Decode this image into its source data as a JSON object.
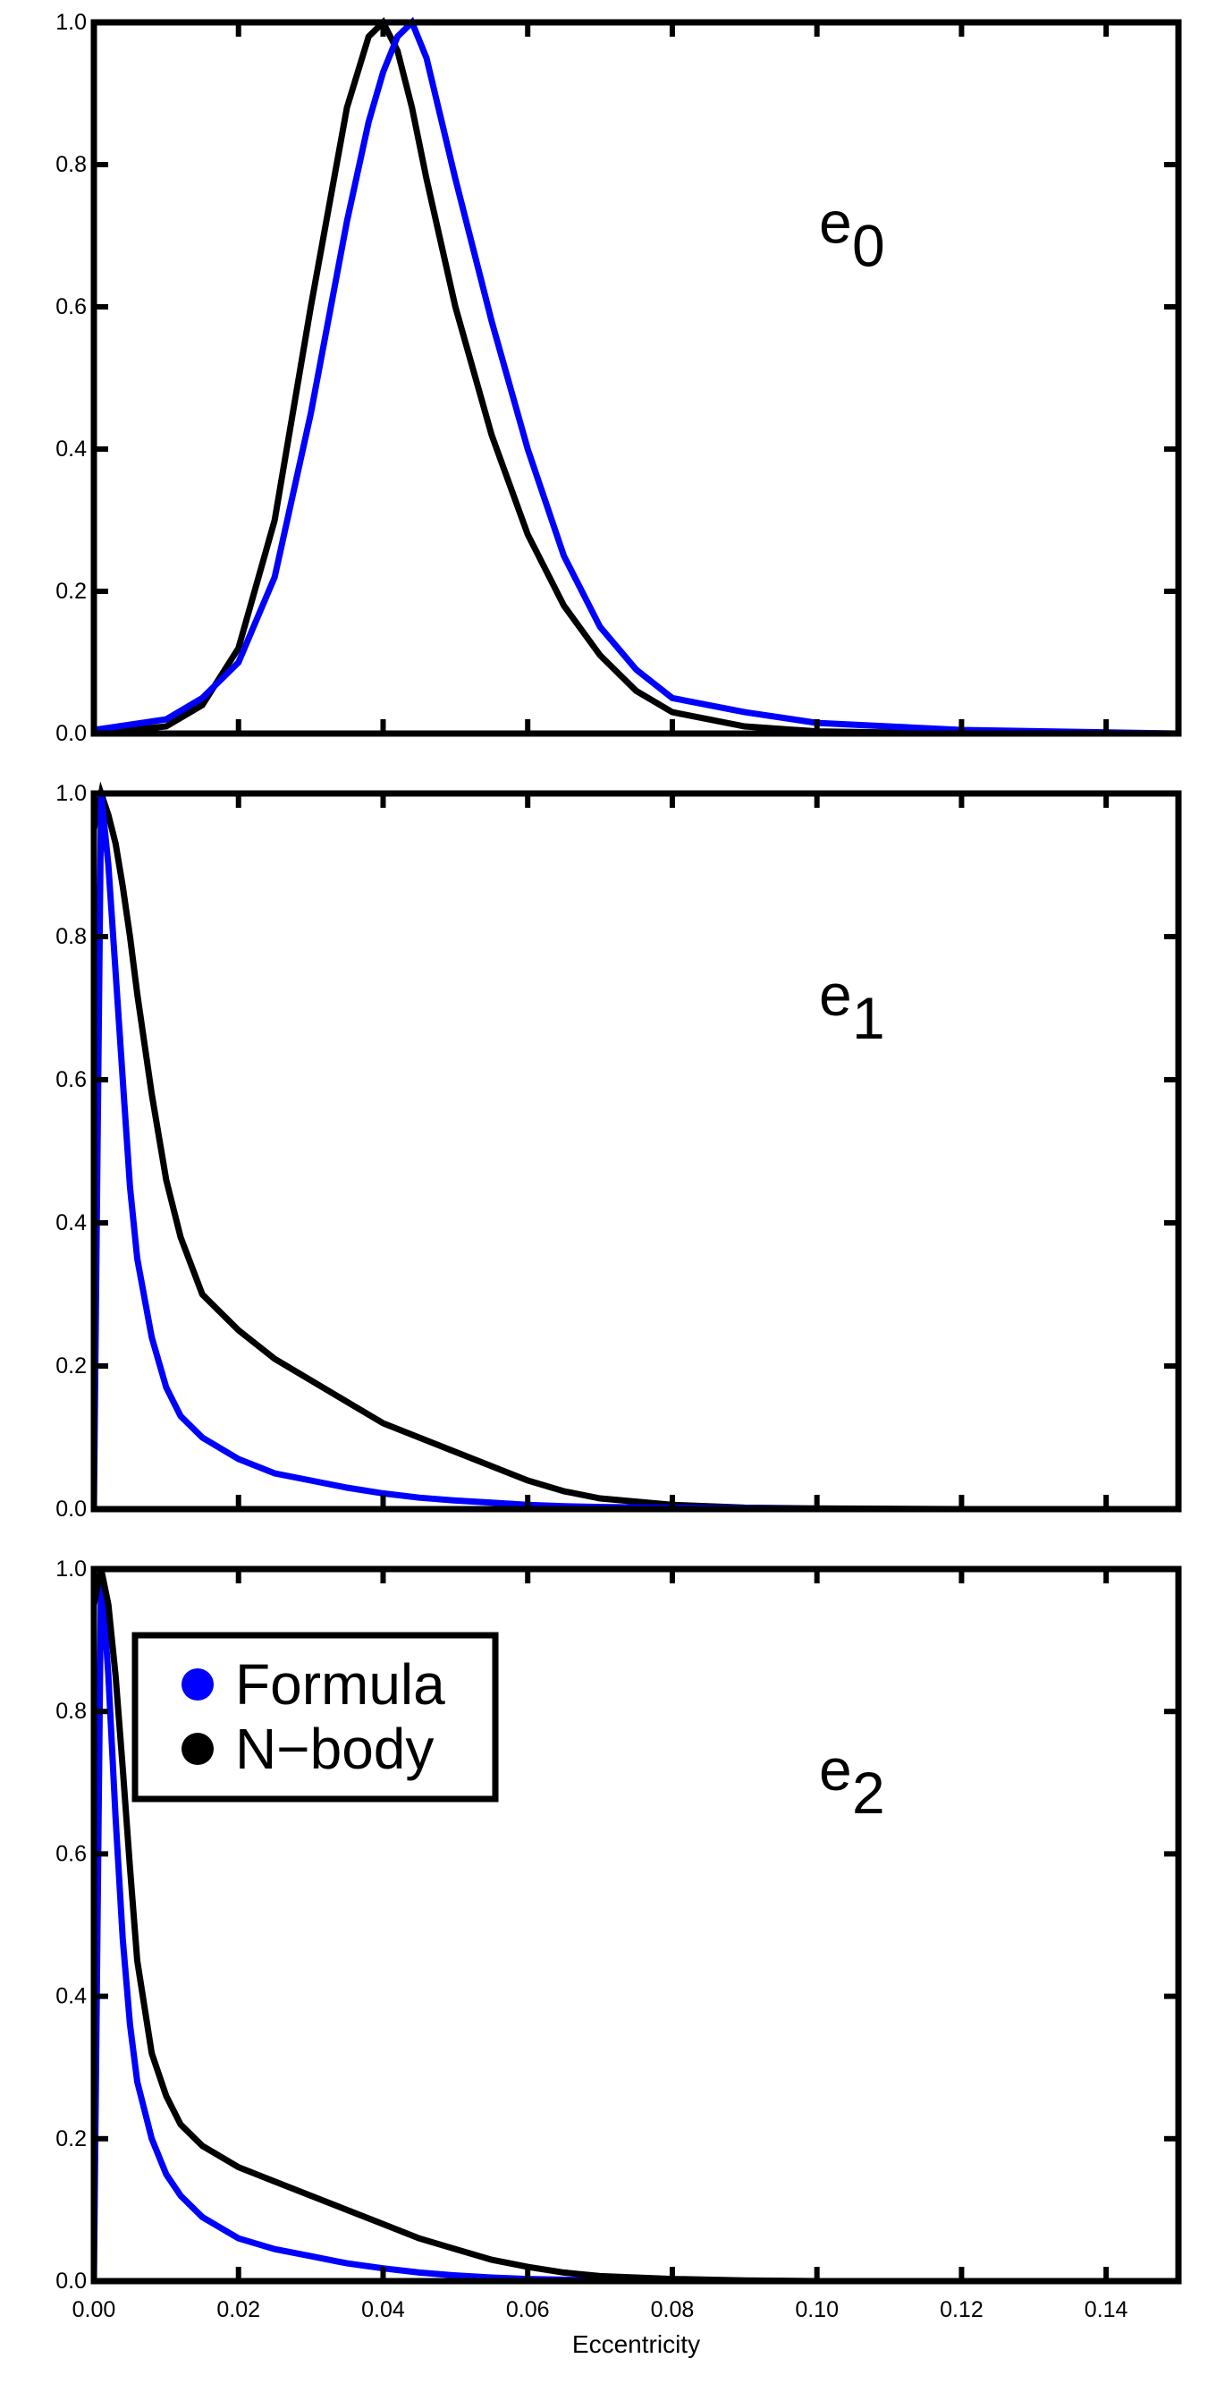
{
  "chart_data": [
    {
      "type": "line",
      "annotation": {
        "text": "e",
        "subscript": "0"
      },
      "x": [
        0,
        0.01,
        0.015,
        0.02,
        0.025,
        0.03,
        0.035,
        0.038,
        0.04,
        0.042,
        0.044,
        0.046,
        0.05,
        0.055,
        0.06,
        0.065,
        0.07,
        0.075,
        0.08,
        0.09,
        0.1,
        0.12,
        0.15
      ],
      "series": [
        {
          "color": "#000000",
          "values": [
            0,
            0.01,
            0.04,
            0.12,
            0.3,
            0.6,
            0.88,
            0.98,
            1.0,
            0.96,
            0.88,
            0.78,
            0.6,
            0.42,
            0.28,
            0.18,
            0.11,
            0.06,
            0.03,
            0.01,
            0.003,
            0,
            0
          ]
        },
        {
          "color": "#0000ff",
          "values": [
            0.005,
            0.02,
            0.05,
            0.1,
            0.22,
            0.45,
            0.72,
            0.86,
            0.93,
            0.98,
            1.0,
            0.95,
            0.78,
            0.58,
            0.4,
            0.25,
            0.15,
            0.09,
            0.05,
            0.03,
            0.015,
            0.005,
            0
          ]
        }
      ],
      "xlim": [
        0,
        0.15
      ],
      "ylim": [
        0,
        1.0
      ],
      "xticks": [
        0,
        0.02,
        0.04,
        0.06,
        0.08,
        0.1,
        0.12,
        0.14
      ],
      "yticks": [
        {
          "value": 0,
          "label": "0.0"
        },
        0.2,
        0.4,
        0.6,
        0.8,
        {
          "value": 1,
          "label": "1.0"
        }
      ]
    },
    {
      "type": "line",
      "annotation": {
        "text": "e",
        "subscript": "1"
      },
      "x": [
        0,
        0.001,
        0.002,
        0.003,
        0.004,
        0.005,
        0.006,
        0.008,
        0.01,
        0.012,
        0.015,
        0.02,
        0.025,
        0.03,
        0.035,
        0.04,
        0.045,
        0.05,
        0.055,
        0.06,
        0.065,
        0.07,
        0.08,
        0.09,
        0.1,
        0.12,
        0.15
      ],
      "series": [
        {
          "color": "#000000",
          "values": [
            0.95,
            1.0,
            0.97,
            0.93,
            0.87,
            0.8,
            0.72,
            0.58,
            0.46,
            0.38,
            0.3,
            0.25,
            0.21,
            0.18,
            0.15,
            0.12,
            0.1,
            0.08,
            0.06,
            0.04,
            0.025,
            0.015,
            0.006,
            0.002,
            0.001,
            0,
            0
          ]
        },
        {
          "color": "#0000ff",
          "values": [
            0,
            1.0,
            0.9,
            0.75,
            0.6,
            0.45,
            0.35,
            0.24,
            0.17,
            0.13,
            0.1,
            0.07,
            0.05,
            0.04,
            0.03,
            0.022,
            0.016,
            0.012,
            0.009,
            0.006,
            0.004,
            0.003,
            0.002,
            0.001,
            0,
            0,
            0
          ]
        }
      ],
      "xlim": [
        0,
        0.15
      ],
      "ylim": [
        0,
        1.0
      ],
      "xticks": [
        0,
        0.02,
        0.04,
        0.06,
        0.08,
        0.1,
        0.12,
        0.14
      ],
      "yticks": [
        {
          "value": 0,
          "label": "0.0"
        },
        0.2,
        0.4,
        0.6,
        0.8,
        {
          "value": 1,
          "label": "1.0"
        }
      ]
    },
    {
      "type": "line",
      "annotation": {
        "text": "e",
        "subscript": "2"
      },
      "xlabel": "Eccentricity",
      "legend": "upper left",
      "x": [
        0,
        0.001,
        0.002,
        0.003,
        0.004,
        0.005,
        0.006,
        0.008,
        0.01,
        0.012,
        0.015,
        0.02,
        0.025,
        0.03,
        0.035,
        0.04,
        0.045,
        0.05,
        0.055,
        0.06,
        0.065,
        0.07,
        0.08,
        0.09,
        0.1,
        0.12,
        0.15
      ],
      "series": [
        {
          "name": "Formula",
          "color": "#0000ff",
          "values": [
            0,
            1.0,
            0.85,
            0.65,
            0.48,
            0.36,
            0.28,
            0.2,
            0.15,
            0.12,
            0.09,
            0.06,
            0.045,
            0.035,
            0.025,
            0.018,
            0.012,
            0.008,
            0.005,
            0.003,
            0.002,
            0.001,
            0,
            0,
            0,
            0,
            0
          ]
        },
        {
          "name": "N−body",
          "color": "#000000",
          "values": [
            0.95,
            1.0,
            0.95,
            0.85,
            0.72,
            0.58,
            0.45,
            0.32,
            0.26,
            0.22,
            0.19,
            0.16,
            0.14,
            0.12,
            0.1,
            0.08,
            0.06,
            0.045,
            0.03,
            0.02,
            0.012,
            0.007,
            0.003,
            0.001,
            0,
            0,
            0
          ]
        }
      ],
      "xlim": [
        0,
        0.15
      ],
      "ylim": [
        0,
        1.0
      ],
      "xticks": [
        {
          "value": 0,
          "label": "0.00"
        },
        0.02,
        0.04,
        0.06,
        0.08,
        {
          "value": 0.1,
          "label": "0.10"
        },
        0.12,
        0.14
      ],
      "yticks": [
        {
          "value": 0,
          "label": "0.0"
        },
        0.2,
        0.4,
        0.6,
        0.8,
        {
          "value": 1,
          "label": "1.0"
        }
      ]
    }
  ]
}
